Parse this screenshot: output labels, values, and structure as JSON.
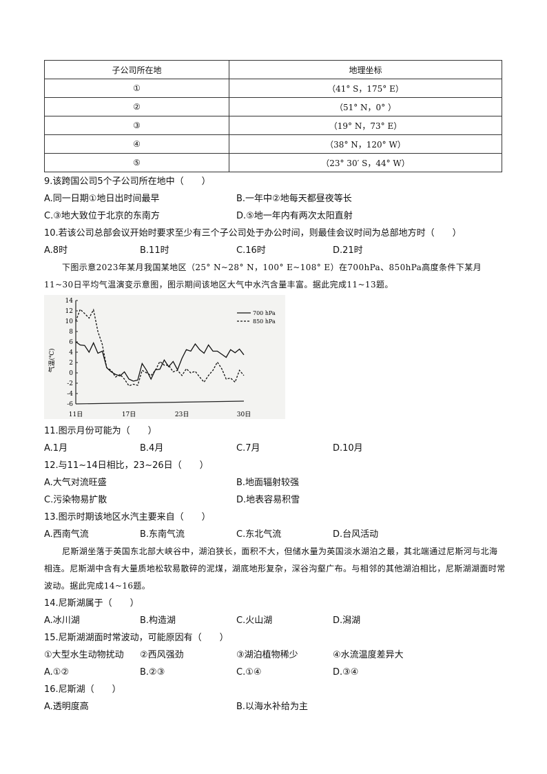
{
  "table": {
    "headers": [
      "子公司所在地",
      "地理坐标"
    ],
    "rows": [
      [
        "①",
        "（41° S，175° E）"
      ],
      [
        "②",
        "（51° N，0° ）"
      ],
      [
        "③",
        "（19° N，73° E）"
      ],
      [
        "④",
        "（38° N，120° W）"
      ],
      [
        "⑤",
        "（23° 30′ S，44° W）"
      ]
    ]
  },
  "q9": {
    "stem": "9.该跨国公司5个子公司所在地中（　　）",
    "options": [
      "A.同一日期①地日出时间最早",
      "B.一年中②地每天都昼夜等长",
      "C.③地大致位于北京的东南方",
      "D.⑤地一年内有两次太阳直射"
    ]
  },
  "q10": {
    "stem": "10.若该公司总部会议开始时要求至少有三个子公司处于办公时间，则最佳会议时间为总部地方时（　　）",
    "options": [
      "A.8时",
      "B.11时",
      "C.16时",
      "D.21时"
    ]
  },
  "passage1": "下图示意2023年某月我国某地区（25° N~28° N，100° E~108° E）在700hPa、850hPa高度条件下某月11~30日平均气温演变示意图，图示期间该地区大气中水汽含量丰富。据此完成11~13题。",
  "chart_data": {
    "type": "line",
    "ylabel": "气温(℃)",
    "ylim": [
      -6,
      14
    ],
    "yticks": [
      "14",
      "12",
      "10",
      "8",
      "6",
      "4",
      "2",
      "0",
      "-2",
      "-4",
      "-6"
    ],
    "xticks": [
      "11日",
      "17日",
      "23日",
      "30日"
    ],
    "x": [
      11,
      11.5,
      12,
      12.5,
      13,
      13.5,
      14,
      14.5,
      15,
      15.5,
      16,
      16.5,
      17,
      17.5,
      18,
      18.5,
      19,
      19.5,
      20,
      20.5,
      21,
      21.5,
      22,
      22.5,
      23,
      23.5,
      24,
      24.5,
      25,
      25.5,
      26,
      26.5,
      27,
      27.5,
      28,
      28.5,
      29,
      29.5,
      30
    ],
    "legend": "top-right",
    "series": [
      {
        "name": "700 hPa",
        "style": "solid",
        "values": [
          6,
          5.4,
          5.3,
          4,
          5.8,
          3.8,
          4.2,
          1,
          0.2,
          -0.3,
          -0.6,
          0.2,
          -1.2,
          -1.6,
          -1.4,
          1.8,
          0.5,
          -1.2,
          0.6,
          0.7,
          2.5,
          1.2,
          2.2,
          0.6,
          2.8,
          4.5,
          4.2,
          5.6,
          4.5,
          3.8,
          5.4,
          4.2,
          4.2,
          3.6,
          3,
          4.5,
          3.9,
          4.6,
          3.5
        ]
      },
      {
        "name": "850 hPa",
        "style": "dashed",
        "values": [
          10,
          12.3,
          11.5,
          10.6,
          12.2,
          8,
          5.5,
          1,
          0.5,
          -0.8,
          -0.3,
          -1.2,
          -2.5,
          -2.2,
          -2.4,
          0.5,
          0,
          -0.5,
          0.5,
          2.2,
          1.5,
          1.5,
          0.2,
          0.5,
          -0.5,
          0.8,
          0,
          0.3,
          -0.8,
          -1.8,
          -0.5,
          0.5,
          2.1,
          0.8,
          -1.2,
          -1,
          -1.8,
          0.5,
          -0.5
        ]
      }
    ]
  },
  "q11": {
    "stem": "11.图示月份可能为（　　）",
    "options": [
      "A.1月",
      "B.4月",
      "C.7月",
      "D.10月"
    ]
  },
  "q12": {
    "stem": "12.与11~14日相比，23~26日（　　）",
    "options": [
      "A.大气对流旺盛",
      "B.地面辐射较强",
      "C.污染物易扩散",
      "D.地表容易积雪"
    ]
  },
  "q13": {
    "stem": "13.图示时期该地区水汽主要来自（　　）",
    "options": [
      "A.西南气流",
      "B.东南气流",
      "C.东北气流",
      "D.台风活动"
    ]
  },
  "passage2": "尼斯湖坐落于英国东北部大峡谷中，湖泊狭长，面积不大，但储水量为英国淡水湖泊之最，其北端通过尼斯河与北海相连。尼斯湖中含有大量质地松软易散碎的泥煤，湖底地形复杂，深谷沟壑广布。与相邻的其他湖泊相比，尼斯湖湖面时常波动。据此完成14~16题。",
  "q14": {
    "stem": "14.尼斯湖属于（　　）",
    "options": [
      "A.冰川湖",
      "B.构造湖",
      "C.火山湖",
      "D.潟湖"
    ]
  },
  "q15": {
    "stem": "15.尼斯湖湖面时常波动，可能原因有（　　）",
    "items": [
      "①大型水生动物扰动",
      "②西风强劲",
      "③湖泊植物稀少",
      "④水流温度差异大"
    ],
    "options": [
      "A.①②",
      "B.②③",
      "C.①④",
      "D.③④"
    ]
  },
  "q16": {
    "stem": "16.尼斯湖（　　）",
    "options": [
      "A.透明度高",
      "B.以海水补给为主"
    ]
  }
}
